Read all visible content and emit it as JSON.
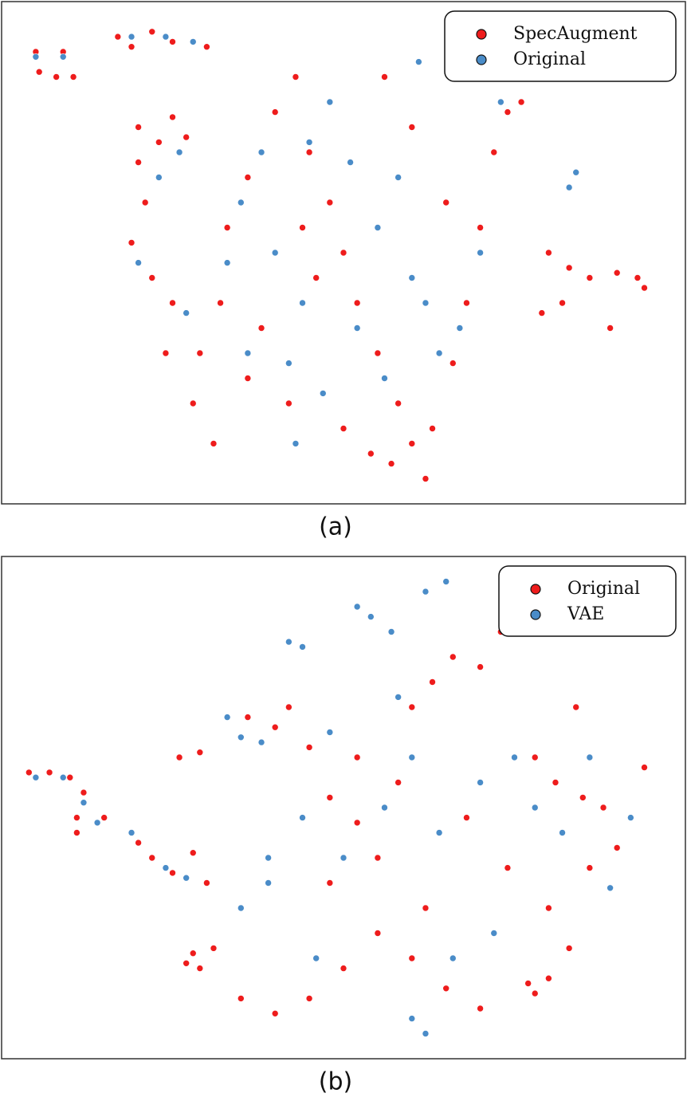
{
  "chart_data": [
    {
      "type": "scatter",
      "caption": "(a)",
      "xlim": [
        0,
        100
      ],
      "ylim": [
        0,
        100
      ],
      "legend": "upper right",
      "series": [
        {
          "name": "SpecAugment",
          "color": "#ee1c1c",
          "x": [
            5,
            9,
            5.5,
            8,
            10.5,
            17,
            19,
            22,
            25,
            30,
            20,
            23,
            25,
            27,
            21,
            19,
            22,
            25,
            24,
            28,
            31,
            20,
            33,
            36,
            40,
            43,
            45,
            48,
            50,
            52,
            55,
            58,
            57,
            60,
            63,
            62,
            66,
            68,
            70,
            72,
            74,
            76,
            72,
            80,
            83,
            86,
            90,
            93,
            82,
            89,
            79,
            94,
            46,
            38,
            36,
            42,
            50,
            54,
            65,
            60,
            56,
            44,
            32,
            29
          ],
          "values": [
            90,
            90,
            86,
            85,
            85,
            93,
            91,
            94,
            92,
            91,
            75,
            72,
            77,
            73,
            60,
            52,
            45,
            40,
            30,
            20,
            12,
            68,
            55,
            65,
            78,
            85,
            70,
            60,
            50,
            40,
            30,
            20,
            8,
            12,
            15,
            5,
            28,
            40,
            55,
            70,
            78,
            80,
            88,
            50,
            47,
            45,
            46,
            45,
            40,
            35,
            38,
            43,
            45,
            35,
            25,
            20,
            15,
            10,
            60,
            75,
            85,
            55,
            40,
            30
          ]
        },
        {
          "name": "Original",
          "color": "#4a8cc8",
          "x": [
            5,
            9,
            19,
            24,
            28,
            26,
            23,
            20,
            27,
            35,
            38,
            45,
            48,
            51,
            55,
            60,
            58,
            62,
            64,
            44,
            42,
            40,
            52,
            47,
            56,
            67,
            70,
            73,
            77,
            83,
            84,
            36,
            33,
            43,
            61
          ],
          "values": [
            89,
            89,
            93,
            93,
            92,
            70,
            65,
            48,
            38,
            60,
            70,
            72,
            80,
            68,
            55,
            45,
            65,
            40,
            30,
            40,
            28,
            50,
            35,
            22,
            25,
            35,
            50,
            80,
            85,
            63,
            66,
            30,
            48,
            12,
            88
          ]
        }
      ]
    },
    {
      "type": "scatter",
      "caption": "(b)",
      "xlim": [
        0,
        100
      ],
      "ylim": [
        0,
        100
      ],
      "legend": "upper right",
      "series": [
        {
          "name": "Original",
          "color": "#ee1c1c",
          "x": [
            4,
            7,
            10,
            12,
            11,
            15,
            11,
            20,
            22,
            25,
            28,
            30,
            27,
            28,
            29,
            31,
            26,
            29,
            36,
            40,
            42,
            45,
            48,
            52,
            55,
            60,
            63,
            66,
            70,
            73,
            78,
            81,
            85,
            88,
            90,
            86,
            80,
            77,
            78,
            80,
            83,
            70,
            65,
            60,
            55,
            50,
            45,
            40,
            35,
            48,
            58,
            68,
            74,
            62,
            52,
            94,
            84
          ],
          "values": [
            57,
            57,
            56,
            53,
            48,
            48,
            45,
            43,
            40,
            37,
            41,
            35,
            19,
            21,
            18,
            22,
            60,
            61,
            68,
            66,
            70,
            62,
            52,
            47,
            40,
            70,
            75,
            80,
            78,
            85,
            60,
            55,
            52,
            50,
            42,
            38,
            30,
            15,
            13,
            16,
            22,
            10,
            14,
            20,
            25,
            18,
            12,
            9,
            12,
            35,
            55,
            48,
            38,
            30,
            60,
            58,
            70
          ]
        },
        {
          "name": "VAE",
          "color": "#4a8cc8",
          "x": [
            5,
            9,
            12,
            14,
            19,
            24,
            27,
            33,
            35,
            38,
            42,
            44,
            52,
            54,
            62,
            65,
            58,
            57,
            44,
            39,
            39,
            50,
            56,
            64,
            70,
            75,
            82,
            92,
            89,
            72,
            66,
            60,
            62,
            46,
            35,
            48,
            60,
            78,
            86
          ],
          "values": [
            56,
            56,
            51,
            47,
            45,
            38,
            36,
            68,
            64,
            63,
            83,
            82,
            90,
            88,
            93,
            95,
            72,
            85,
            48,
            40,
            35,
            40,
            50,
            45,
            55,
            60,
            45,
            48,
            34,
            25,
            20,
            8,
            5,
            20,
            30,
            65,
            60,
            50,
            60
          ]
        }
      ]
    }
  ]
}
